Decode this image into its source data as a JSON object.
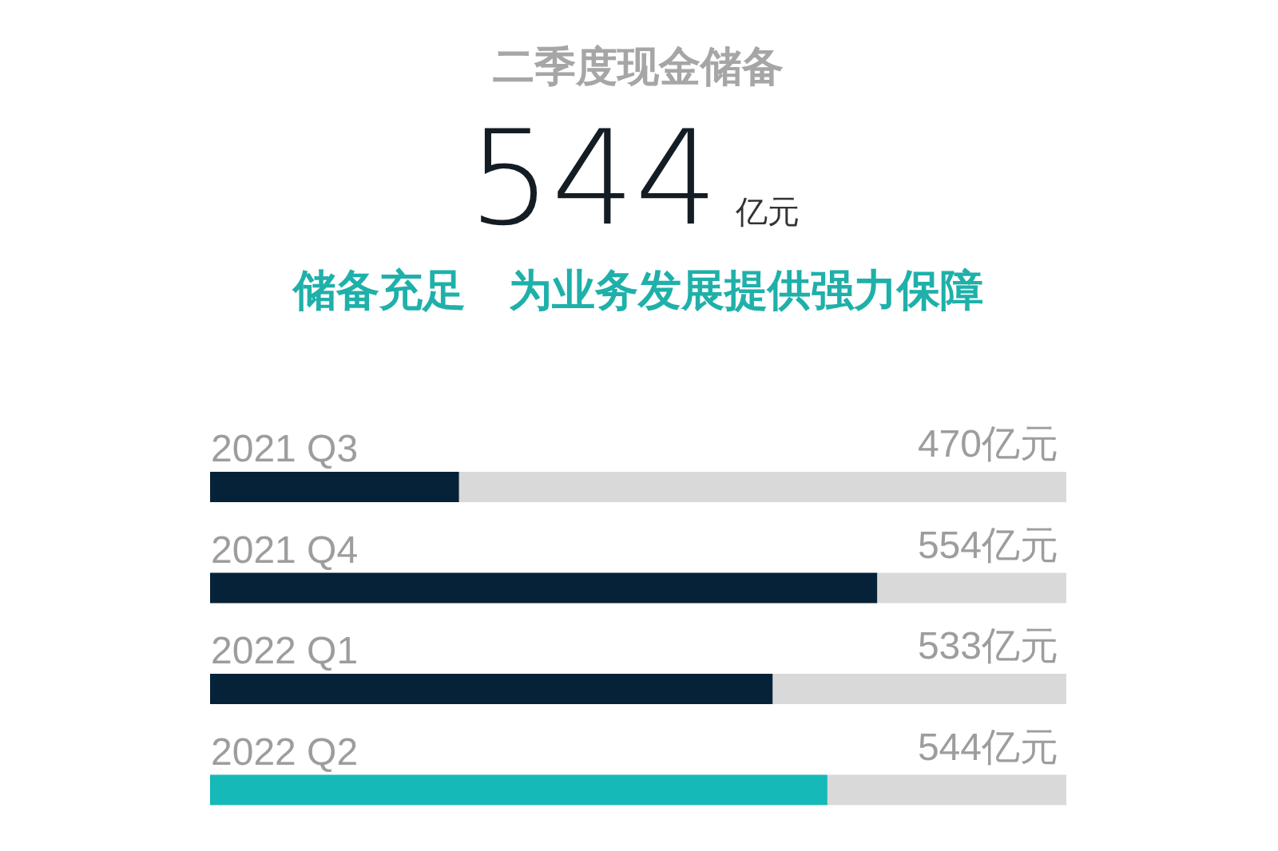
{
  "chart_data": {
    "type": "bar",
    "orientation": "horizontal",
    "title": "二季度现金储备",
    "subtitle": "储备充足　为业务发展提供强力保障",
    "annotations": [
      "544",
      "亿元"
    ],
    "categories": [
      "2021 Q3",
      "2021 Q4",
      "2022 Q1",
      "2022 Q2"
    ],
    "values": [
      470,
      554,
      533,
      544
    ],
    "colors": [
      "#062238",
      "#062238",
      "#062238",
      "#14b9b8"
    ],
    "value_labels": [
      "470亿元",
      "554亿元",
      "533亿元",
      "544亿元"
    ],
    "xlim": [
      420,
      592
    ],
    "tick_labels": "y"
  }
}
